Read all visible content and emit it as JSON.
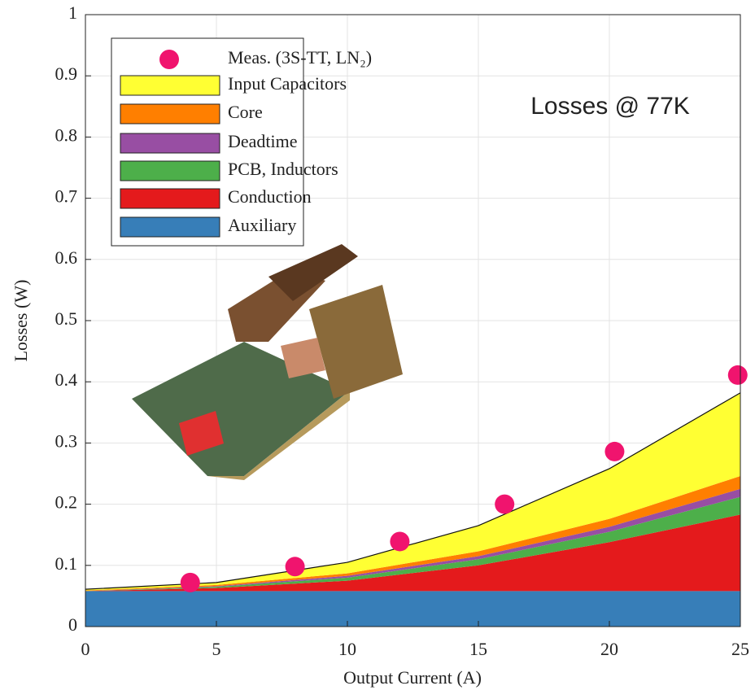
{
  "chart_data": {
    "type": "stacked-area",
    "x_label": "Output Current (A)",
    "y_label": "Losses (W)",
    "annotation": "Losses @ 77K",
    "x": [
      0,
      5,
      10,
      15,
      20,
      25
    ],
    "series": [
      {
        "name": "Auxiliary",
        "color": "#377eb8",
        "values": [
          0.058,
          0.058,
          0.058,
          0.058,
          0.058,
          0.058
        ]
      },
      {
        "name": "Conduction",
        "color": "#e41a1c",
        "values": [
          0.0,
          0.005,
          0.017,
          0.042,
          0.08,
          0.125
        ]
      },
      {
        "name": "PCB, Inductors",
        "color": "#4daf4a",
        "values": [
          0.0,
          0.002,
          0.005,
          0.01,
          0.017,
          0.029
        ]
      },
      {
        "name": "Deadtime",
        "color": "#984ea3",
        "values": [
          0.0,
          0.001,
          0.003,
          0.005,
          0.008,
          0.013
        ]
      },
      {
        "name": "Core",
        "color": "#ff7f00",
        "values": [
          0.001,
          0.002,
          0.004,
          0.008,
          0.013,
          0.021
        ]
      },
      {
        "name": "Input Capacitors",
        "color": "#ffff33",
        "values": [
          0.002,
          0.004,
          0.018,
          0.042,
          0.082,
          0.136
        ]
      }
    ],
    "scatter": {
      "name": "Meas. (3S-TT, LN₂)",
      "color": "#f0146e",
      "x": [
        4,
        8,
        12,
        16,
        20.2,
        24.9
      ],
      "values": [
        0.072,
        0.098,
        0.139,
        0.2,
        0.286,
        0.411
      ]
    },
    "xlim": [
      0,
      25
    ],
    "xticks": [
      0,
      5,
      10,
      15,
      20,
      25
    ],
    "ylim": [
      0,
      1
    ],
    "yticks": [
      0,
      0.1,
      0.2,
      0.3,
      0.4,
      0.5,
      0.6,
      0.7,
      0.8,
      0.9,
      1
    ],
    "grid": true,
    "legend": "upper-left"
  }
}
